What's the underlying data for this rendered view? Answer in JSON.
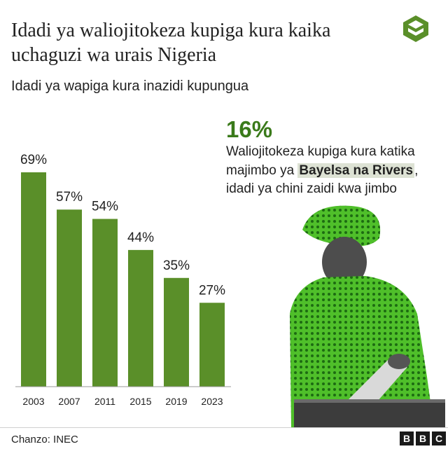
{
  "header": {
    "title": "Idadi ya waliojitokeza kupiga kura kaika uchaguzi wa urais Nigeria",
    "subtitle": "Idadi ya wapiga kura inazidi kupungua"
  },
  "callout": {
    "value": "16%",
    "text_before": "Waliojitokeza kupiga kura katika majimbo ya ",
    "highlight": "Bayelsa na Rivers",
    "text_after": ", idadi ya chini zaidi kwa jimbo"
  },
  "footer": {
    "source": "Chanzo: INEC",
    "brand_letters": [
      "B",
      "B",
      "C"
    ]
  },
  "colors": {
    "bar": "#5a8f29",
    "accent": "#3a7a1a",
    "axis": "#9a9a9a"
  },
  "chart_data": {
    "type": "bar",
    "categories": [
      "2003",
      "2007",
      "2011",
      "2015",
      "2019",
      "2023"
    ],
    "values": [
      69,
      57,
      54,
      44,
      35,
      27
    ],
    "value_labels": [
      "69%",
      "57%",
      "54%",
      "44%",
      "35%",
      "27%"
    ],
    "ylim": [
      0,
      70
    ],
    "grid": false,
    "title": "Idadi ya waliojitokeza kupiga kura kaika uchaguzi wa urais Nigeria"
  }
}
